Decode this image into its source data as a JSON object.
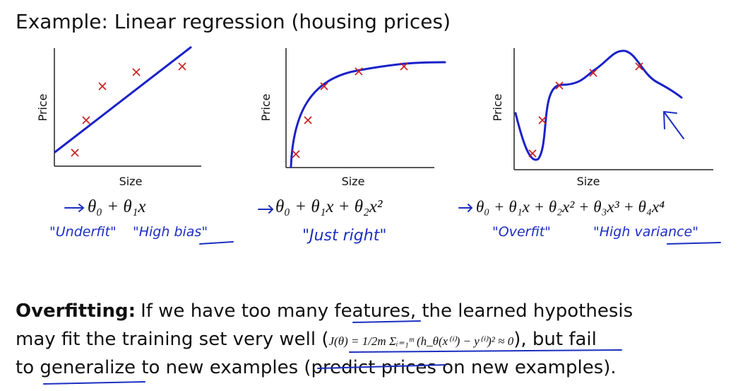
{
  "title": "Example: Linear regression (housing prices)",
  "plots": [
    {
      "y_label": "Price",
      "x_label": "Size",
      "hypothesis": "θ₀ + θ₁x",
      "notes": [
        "\"Underfit\"",
        "\"High bias\""
      ]
    },
    {
      "y_label": "Price",
      "x_label": "Size",
      "hypothesis": "θ₀ + θ₁x + θ₂x²",
      "notes": [
        "\"Just right\""
      ]
    },
    {
      "y_label": "Price",
      "x_label": "Size",
      "hypothesis": "θ₀ + θ₁x + θ₂x² + θ₃x³ + θ₄x⁴",
      "notes": [
        "\"Overfit\"",
        "\"High variance\""
      ]
    }
  ],
  "paragraph": {
    "term": "Overfitting:",
    "line1": "If we have too many features, the learned hypothesis",
    "line2_start": "may fit the training set very well (",
    "formula": "J(θ) = 1/2m Σᵢ₌₁ᵐ (h_θ(x⁽ⁱ⁾) − y⁽ⁱ⁾)² ≈ 0",
    "line2_end": "), but fail",
    "line3": "to generalize to new examples (predict prices on new examples)."
  }
}
